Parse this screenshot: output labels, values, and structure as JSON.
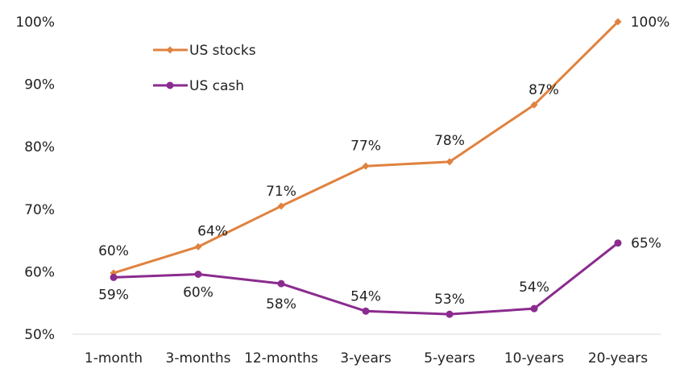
{
  "chart_data": {
    "type": "line",
    "title": "",
    "xlabel": "",
    "ylabel": "",
    "categories": [
      "1-month",
      "3-months",
      "12-months",
      "3-years",
      "5-years",
      "10-years",
      "20-years"
    ],
    "ylim": [
      50,
      100
    ],
    "yticks": [
      "50%",
      "60%",
      "70%",
      "80%",
      "90%",
      "100%"
    ],
    "grid": false,
    "legend_position": "top-left",
    "series": [
      {
        "name": "US stocks",
        "color": "#e0823f",
        "marker": "diamond",
        "values": [
          59.8,
          64.0,
          70.5,
          76.9,
          77.6,
          86.7,
          100
        ],
        "labels": [
          "60%",
          "64%",
          "71%",
          "77%",
          "78%",
          "87%",
          "100%"
        ]
      },
      {
        "name": "US cash",
        "color": "#8b2b8f",
        "marker": "circle",
        "values": [
          59.1,
          59.6,
          58.1,
          53.7,
          53.2,
          54.1,
          64.6
        ],
        "labels": [
          "59%",
          "60%",
          "58%",
          "54%",
          "53%",
          "54%",
          "65%"
        ]
      }
    ]
  }
}
